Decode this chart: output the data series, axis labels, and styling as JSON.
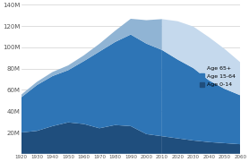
{
  "years_hist": [
    1920,
    1930,
    1940,
    1950,
    1960,
    1970,
    1980,
    1990,
    2000,
    2010
  ],
  "years_proj": [
    2010,
    2020,
    2030,
    2040,
    2050,
    2060
  ],
  "age_0_14_hist": [
    20000000,
    21500000,
    26000000,
    29500000,
    28000000,
    24000000,
    27000000,
    26000000,
    18500000,
    16500000
  ],
  "age_15_64_hist": [
    33000000,
    43000000,
    47000000,
    49000000,
    59000000,
    72000000,
    78000000,
    86000000,
    85000000,
    81000000
  ],
  "age_65p_hist": [
    2500000,
    3000000,
    3800000,
    4500000,
    5400000,
    7300000,
    10500000,
    14800000,
    22000000,
    29000000
  ],
  "age_0_14_proj": [
    16500000,
    14500000,
    12500000,
    11000000,
    10000000,
    9000000
  ],
  "age_15_64_proj": [
    81000000,
    74000000,
    68000000,
    58000000,
    51000000,
    46000000
  ],
  "age_65p_proj": [
    29000000,
    36000000,
    39000000,
    40500000,
    37500000,
    31000000
  ],
  "color_0_14": "#1f4e7d",
  "color_15_64": "#2e75b6",
  "color_65p_hist": "#90b4d4",
  "color_65p_proj": "#c5d9ed",
  "ylim": [
    0,
    140000000
  ],
  "yticks": [
    0,
    20000000,
    40000000,
    60000000,
    80000000,
    100000000,
    120000000,
    140000000
  ],
  "ytick_labels": [
    "",
    "20M",
    "40M",
    "60M",
    "80M",
    "100M",
    "120M",
    "140M"
  ],
  "xticks": [
    1920,
    1930,
    1940,
    1950,
    1960,
    1970,
    1980,
    1990,
    2000,
    2010,
    2020,
    2030,
    2040,
    2050,
    2060
  ],
  "legend_labels": [
    "Age 65+",
    "Age 15-64",
    "Age 0-14"
  ],
  "legend_colors": [
    "#c5d9ed",
    "#2e75b6",
    "#1f4e7d"
  ],
  "background_color": "#ffffff",
  "grid_color": "#d0d0d0",
  "divider_x": 2010
}
